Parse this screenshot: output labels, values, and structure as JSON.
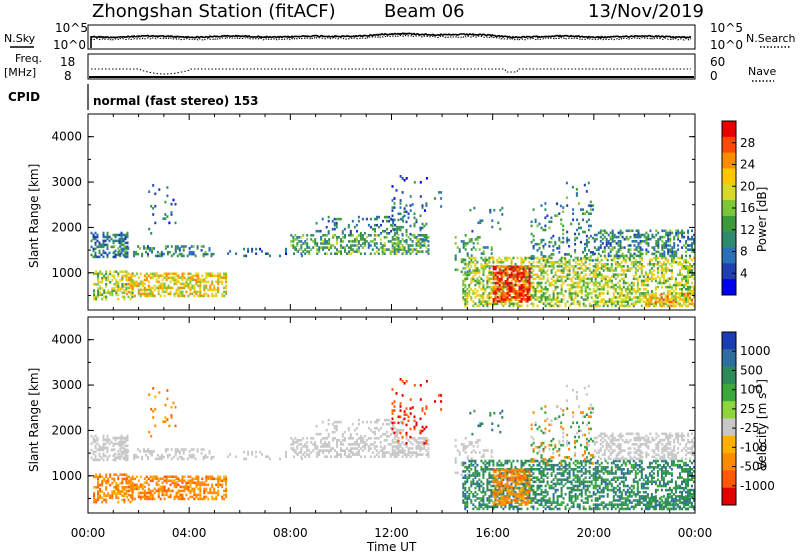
{
  "header": {
    "station": "Zhongshan Station (fitACF)",
    "beam": "Beam 06",
    "date": "13/Nov/2019"
  },
  "top_panels": {
    "nsky_label": "N.Sky",
    "nsky_ticks": [
      "10^5",
      "10^0"
    ],
    "nsearch_label": "N.Search",
    "nsearch_ticks": [
      "10^5",
      "10^0"
    ],
    "freq_label": "Freq.",
    "freq_unit": "[MHz]",
    "freq_ticks": [
      "18",
      "8"
    ],
    "nave_label": "Nave",
    "nave_ticks": [
      "60",
      "0"
    ],
    "cpid_label": "CPID",
    "cpid_value": "normal (fast stereo) 153"
  },
  "chart_data": [
    {
      "type": "heatmap",
      "name": "power",
      "ylabel": "Slant Range [km]",
      "ylim": [
        180,
        4500
      ],
      "yticks": [
        "1000",
        "2000",
        "3000",
        "4000"
      ],
      "xlim": [
        0,
        24
      ],
      "colorbar": {
        "label": "Power [dB]",
        "ticks": [
          "4",
          "8",
          "12",
          "16",
          "20",
          "24",
          "28"
        ],
        "colors": [
          "#0000ee",
          "#1f3fae",
          "#2b6fb6",
          "#2e8a6e",
          "#3c9a3c",
          "#7cc63a",
          "#d8d82a",
          "#ffc600",
          "#ff8c00",
          "#ff4a00",
          "#e60000"
        ]
      }
    },
    {
      "type": "heatmap",
      "name": "velocity",
      "ylabel": "Slant Range [km]",
      "ylim": [
        180,
        4500
      ],
      "yticks": [
        "1000",
        "2000",
        "3000",
        "4000"
      ],
      "xlim": [
        0,
        24
      ],
      "xlabel": "Time UT",
      "xticks": [
        "00:00",
        "04:00",
        "08:00",
        "12:00",
        "16:00",
        "20:00",
        "00:00"
      ],
      "colorbar": {
        "label": "Velocity [m s",
        "label_sup": "-1",
        "label_end": "]",
        "ticks": [
          "1000",
          "500",
          "100",
          "25",
          "-25",
          "-100",
          "-500",
          "-1000"
        ],
        "colors": [
          "#1a3cb4",
          "#2e6e9e",
          "#2f8a5a",
          "#3aa83a",
          "#8fd63c",
          "#c8c8c8",
          "#ffb000",
          "#ff8a00",
          "#ff5a00",
          "#e00000"
        ]
      }
    }
  ]
}
